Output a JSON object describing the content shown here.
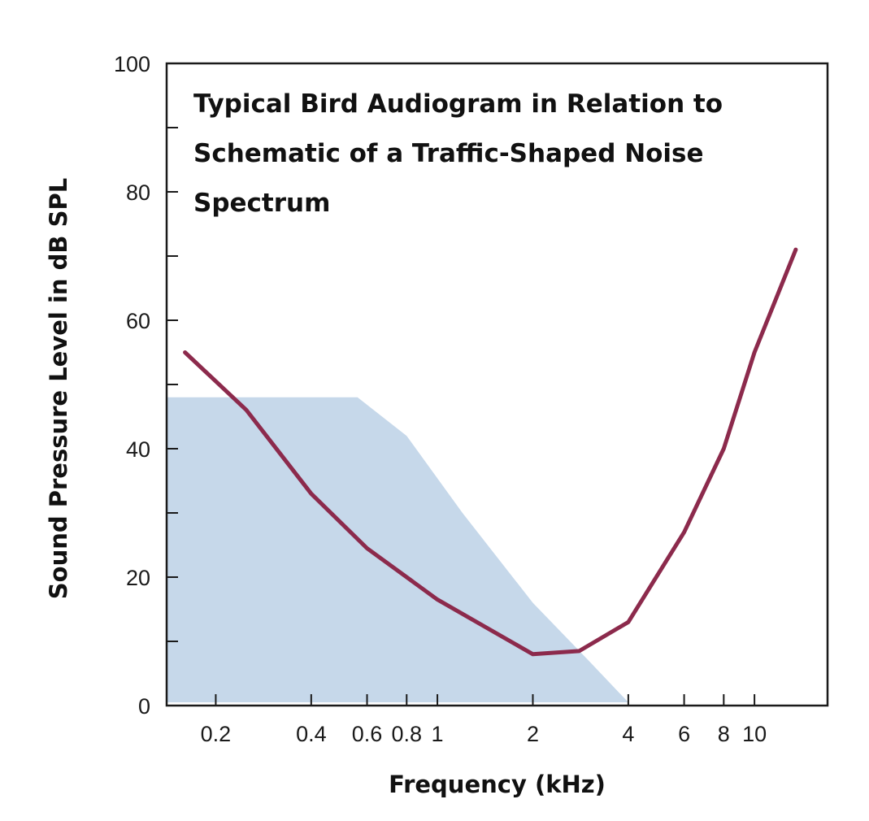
{
  "chart_data": {
    "type": "line",
    "title_lines": [
      "Typical Bird Audiogram in  Relation to",
      "Schematic of a Traffic-Shaped Noise",
      "Spectrum"
    ],
    "xlabel": "Frequency (kHz)",
    "ylabel": "Sound Pressure Level in dB SPL",
    "x_scale": "log",
    "xlim": [
      0.14,
      17
    ],
    "ylim": [
      0,
      100
    ],
    "x_ticks": [
      {
        "value": 0.2,
        "label": "0.2"
      },
      {
        "value": 0.4,
        "label": "0.4"
      },
      {
        "value": 0.6,
        "label": "0.6"
      },
      {
        "value": 0.8,
        "label": "0.8"
      },
      {
        "value": 1,
        "label": "1"
      },
      {
        "value": 2,
        "label": "2"
      },
      {
        "value": 4,
        "label": "4"
      },
      {
        "value": 6,
        "label": "6"
      },
      {
        "value": 8,
        "label": "8"
      },
      {
        "value": 10,
        "label": "10"
      }
    ],
    "y_major_ticks": [
      {
        "value": 0,
        "label": "0"
      },
      {
        "value": 20,
        "label": "20"
      },
      {
        "value": 40,
        "label": "40"
      },
      {
        "value": 60,
        "label": "60"
      },
      {
        "value": 80,
        "label": "80"
      },
      {
        "value": 100,
        "label": "100"
      }
    ],
    "y_minor_ticks": [
      10,
      30,
      50,
      70,
      90
    ],
    "grid": false,
    "legend": "none",
    "series": [
      {
        "kind": "line",
        "color": "#8c2a4c",
        "points": [
          [
            0.16,
            55
          ],
          [
            0.25,
            46
          ],
          [
            0.4,
            33
          ],
          [
            0.6,
            24.5
          ],
          [
            1,
            16.5
          ],
          [
            2,
            8
          ],
          [
            2.8,
            8.5
          ],
          [
            4,
            13
          ],
          [
            6,
            27
          ],
          [
            8,
            40
          ],
          [
            10,
            55
          ],
          [
            13.5,
            71
          ]
        ]
      },
      {
        "kind": "area",
        "color": "#c6d8ea",
        "points": [
          [
            0.14,
            48
          ],
          [
            0.56,
            48
          ],
          [
            0.8,
            42
          ],
          [
            1.2,
            30
          ],
          [
            2,
            16
          ],
          [
            3,
            7
          ],
          [
            4,
            0.5
          ],
          [
            0.14,
            0.5
          ]
        ]
      }
    ]
  }
}
